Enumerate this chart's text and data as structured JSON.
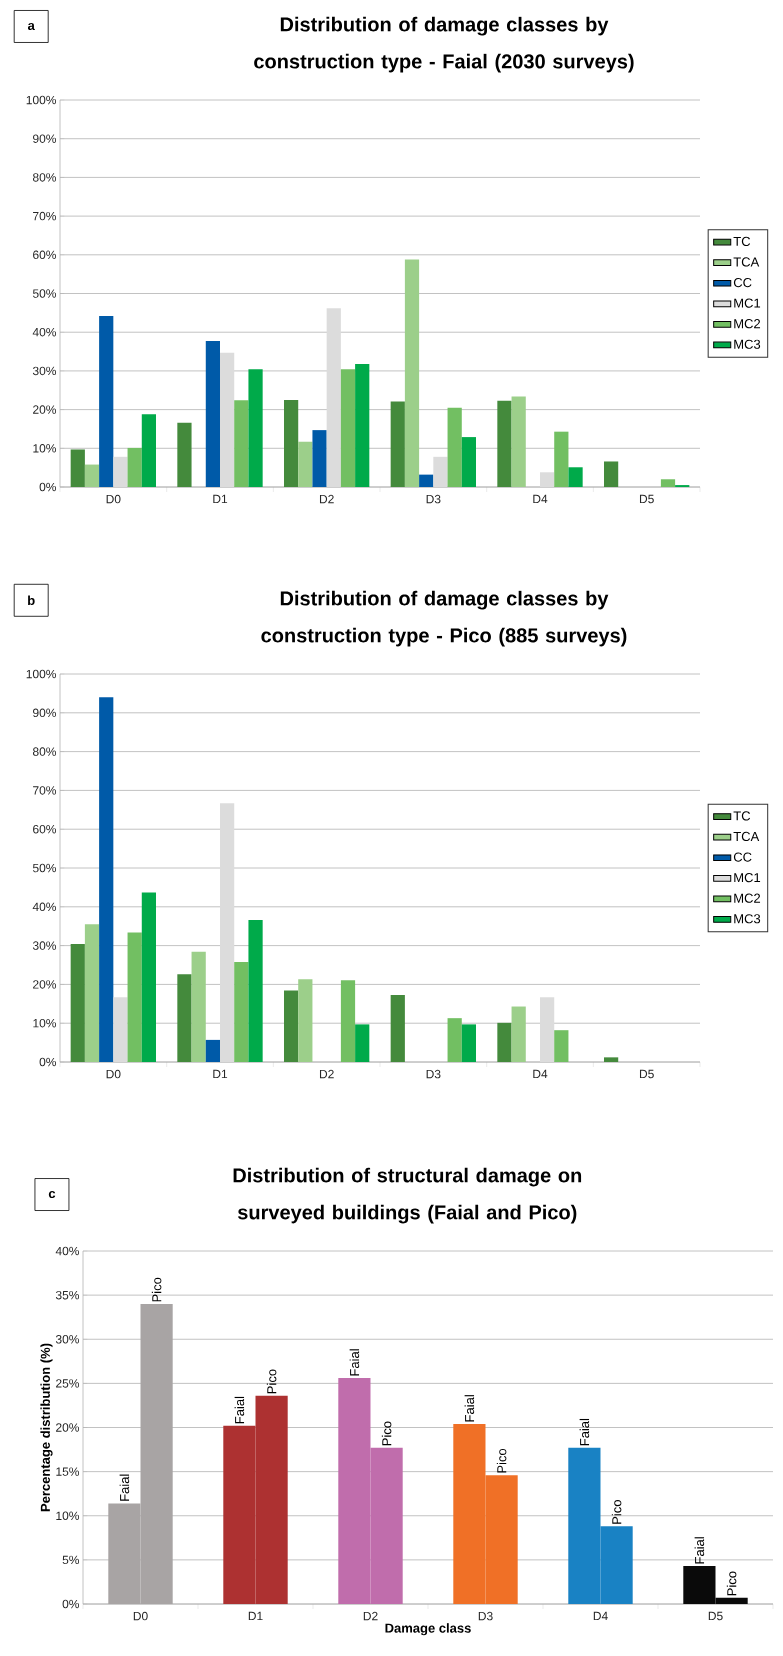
{
  "chart_data": [
    {
      "type": "bar",
      "title": "Distribution of damage classes by construction type - Faial (2030 surveys)",
      "annotations": [
        "a"
      ],
      "categories": [
        "D0",
        "D1",
        "D2",
        "D3",
        "D4",
        "D5"
      ],
      "ylim": [
        0,
        100
      ],
      "yticks": [
        {
          "value": 0,
          "label": "0%"
        },
        {
          "value": 10,
          "label": "10%"
        },
        {
          "value": 20,
          "label": "20%"
        },
        {
          "value": 30,
          "label": "30%"
        },
        {
          "value": 40,
          "label": "40%"
        },
        {
          "value": 50,
          "label": "50%"
        },
        {
          "value": 60,
          "label": "60%"
        },
        {
          "value": 70,
          "label": "70%"
        },
        {
          "value": 80,
          "label": "80%"
        },
        {
          "value": 90,
          "label": "90%"
        },
        {
          "value": 100,
          "label": "100%"
        }
      ],
      "grid": "y",
      "legend": "right",
      "series": [
        {
          "name": "TC",
          "color": "#448a3c",
          "values": [
            9.7,
            16.6,
            22.5,
            22.1,
            22.3,
            6.6
          ]
        },
        {
          "name": "TCA",
          "color": "#9ccf8a",
          "values": [
            5.8,
            0,
            11.7,
            58.8,
            23.4,
            0
          ]
        },
        {
          "name": "CC",
          "color": "#005aa8",
          "values": [
            44.2,
            37.7,
            14.7,
            3.2,
            0,
            0
          ]
        },
        {
          "name": "MC1",
          "color": "#dcdcdc",
          "values": [
            7.8,
            34.7,
            46.2,
            7.8,
            3.8,
            0
          ]
        },
        {
          "name": "MC2",
          "color": "#72bf62",
          "values": [
            10.1,
            22.4,
            30.4,
            20.5,
            14.3,
            2.0
          ]
        },
        {
          "name": "MC3",
          "color": "#00aa4a",
          "values": [
            18.8,
            30.4,
            31.8,
            12.9,
            5.1,
            0.5
          ]
        }
      ]
    },
    {
      "type": "bar",
      "title": "Distribution of damage classes by construction type - Pico (885 surveys)",
      "annotations": [
        "b"
      ],
      "categories": [
        "D0",
        "D1",
        "D2",
        "D3",
        "D4",
        "D5"
      ],
      "ylim": [
        0,
        100
      ],
      "yticks": [
        {
          "value": 0,
          "label": "0%"
        },
        {
          "value": 10,
          "label": "10%"
        },
        {
          "value": 20,
          "label": "20%"
        },
        {
          "value": 30,
          "label": "30%"
        },
        {
          "value": 40,
          "label": "40%"
        },
        {
          "value": 50,
          "label": "50%"
        },
        {
          "value": 60,
          "label": "60%"
        },
        {
          "value": 70,
          "label": "70%"
        },
        {
          "value": 80,
          "label": "80%"
        },
        {
          "value": 90,
          "label": "90%"
        },
        {
          "value": 100,
          "label": "100%"
        }
      ],
      "grid": "y",
      "legend": "right",
      "series": [
        {
          "name": "TC",
          "color": "#448a3c",
          "values": [
            30.4,
            22.6,
            18.4,
            17.3,
            10.1,
            1.2
          ]
        },
        {
          "name": "TCA",
          "color": "#9ccf8a",
          "values": [
            35.5,
            28.4,
            21.3,
            0,
            14.3,
            0
          ]
        },
        {
          "name": "CC",
          "color": "#005aa8",
          "values": [
            94.0,
            5.7,
            0,
            0,
            0,
            0
          ]
        },
        {
          "name": "MC1",
          "color": "#dcdcdc",
          "values": [
            16.7,
            66.7,
            0,
            0,
            16.7,
            0
          ]
        },
        {
          "name": "MC2",
          "color": "#72bf62",
          "values": [
            33.4,
            25.8,
            21.1,
            11.3,
            8.2,
            0
          ]
        },
        {
          "name": "MC3",
          "color": "#00aa4a",
          "values": [
            43.7,
            36.6,
            9.7,
            9.7,
            0,
            0
          ]
        }
      ]
    },
    {
      "type": "bar",
      "title": "Distribution of structural damage on surveyed buildings (Faial and Pico)",
      "annotations": [
        "c"
      ],
      "xlabel": "Damage class",
      "ylabel": "Percentage distribution (%)",
      "categories": [
        "D0",
        "D1",
        "D2",
        "D3",
        "D4",
        "D5"
      ],
      "ylim": [
        0,
        40
      ],
      "yticks": [
        {
          "value": 0,
          "label": "0%"
        },
        {
          "value": 5,
          "label": "5%"
        },
        {
          "value": 10,
          "label": "10%"
        },
        {
          "value": 15,
          "label": "15%"
        },
        {
          "value": 20,
          "label": "20%"
        },
        {
          "value": 25,
          "label": "25%"
        },
        {
          "value": 30,
          "label": "30%"
        },
        {
          "value": 35,
          "label": "35%"
        },
        {
          "value": 40,
          "label": "40%"
        }
      ],
      "grid": "y",
      "series": [
        {
          "name": "Faial",
          "colors": [
            "#a8a4a4",
            "#ad3131",
            "#c06dac",
            "#f07026",
            "#1982c4",
            "#0a0a0a"
          ],
          "values": [
            11.4,
            20.2,
            25.6,
            20.4,
            17.7,
            4.3
          ]
        },
        {
          "name": "Pico",
          "colors": [
            "#a8a4a4",
            "#ad3131",
            "#c06dac",
            "#f07026",
            "#1982c4",
            "#0a0a0a"
          ],
          "values": [
            34.0,
            23.6,
            17.7,
            14.6,
            8.8,
            0.7
          ]
        }
      ]
    }
  ]
}
